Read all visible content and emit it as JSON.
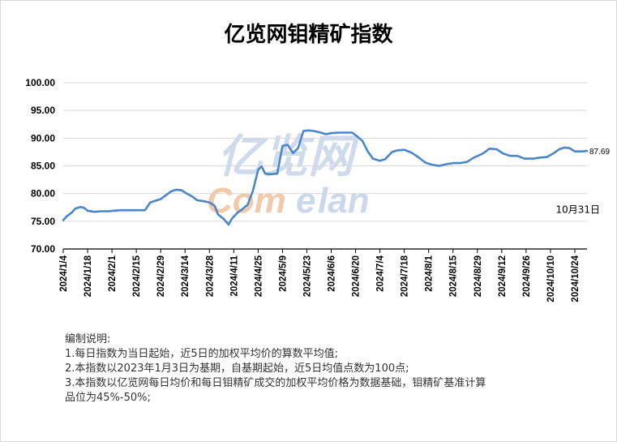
{
  "title": "亿览网钼精矿指数",
  "watermark": {
    "cn": "亿览网",
    "en_left": "Com",
    "en_right": "lan",
    "en_mark": "e"
  },
  "colors": {
    "line": "#4a86c8",
    "watermark_blue": "#a9bfe0",
    "watermark_orange": "#e9a772"
  },
  "chart_data": {
    "type": "line",
    "title": "亿览网钼精矿指数",
    "ylim": [
      70,
      100
    ],
    "yticks": [
      "70.00",
      "75.00",
      "80.00",
      "85.00",
      "90.00",
      "95.00",
      "100.00"
    ],
    "xticks": [
      "2024/1/4",
      "2024/1/18",
      "2024/2/1",
      "2024/2/15",
      "2024/2/29",
      "2024/3/14",
      "2024/3/28",
      "2024/4/11",
      "2024/4/25",
      "2024/5/9",
      "2024/5/23",
      "2024/6/6",
      "2024/6/20",
      "2024/7/4",
      "2024/7/18",
      "2024/8/1",
      "2024/8/15",
      "2024/8/29",
      "2024/9/12",
      "2024/9/26",
      "2024/10/10",
      "2024/10/24"
    ],
    "x_start": "2024/1/4",
    "x_end": "2024/10/31",
    "grid": "horizontal",
    "last_value_label": "87.69",
    "annotation": "10月31日",
    "series": [
      {
        "points": [
          [
            "2024/1/4",
            75.2
          ],
          [
            "2024/1/6",
            75.9
          ],
          [
            "2024/1/9",
            76.6
          ],
          [
            "2024/1/11",
            77.3
          ],
          [
            "2024/1/14",
            77.6
          ],
          [
            "2024/1/16",
            77.4
          ],
          [
            "2024/1/18",
            76.9
          ],
          [
            "2024/1/22",
            76.7
          ],
          [
            "2024/1/26",
            76.8
          ],
          [
            "2024/1/30",
            76.8
          ],
          [
            "2024/2/2",
            76.9
          ],
          [
            "2024/2/6",
            77.0
          ],
          [
            "2024/2/10",
            77.0
          ],
          [
            "2024/2/15",
            77.0
          ],
          [
            "2024/2/20",
            77.0
          ],
          [
            "2024/2/23",
            78.4
          ],
          [
            "2024/2/26",
            78.7
          ],
          [
            "2024/2/29",
            79.0
          ],
          [
            "2024/3/3",
            79.7
          ],
          [
            "2024/3/6",
            80.4
          ],
          [
            "2024/3/9",
            80.7
          ],
          [
            "2024/3/12",
            80.6
          ],
          [
            "2024/3/15",
            80.0
          ],
          [
            "2024/3/18",
            79.5
          ],
          [
            "2024/3/21",
            78.8
          ],
          [
            "2024/3/25",
            78.6
          ],
          [
            "2024/3/28",
            78.4
          ],
          [
            "2024/3/31",
            77.8
          ],
          [
            "2024/4/2",
            76.2
          ],
          [
            "2024/4/5",
            75.5
          ],
          [
            "2024/4/8",
            74.4
          ],
          [
            "2024/4/10",
            75.5
          ],
          [
            "2024/4/13",
            76.5
          ],
          [
            "2024/4/16",
            77.2
          ],
          [
            "2024/4/19",
            78.0
          ],
          [
            "2024/4/22",
            80.5
          ],
          [
            "2024/4/25",
            84.3
          ],
          [
            "2024/4/27",
            84.9
          ],
          [
            "2024/4/29",
            83.6
          ],
          [
            "2024/5/2",
            83.5
          ],
          [
            "2024/5/6",
            83.6
          ],
          [
            "2024/5/9",
            88.6
          ],
          [
            "2024/5/12",
            88.8
          ],
          [
            "2024/5/15",
            87.3
          ],
          [
            "2024/5/18",
            88.2
          ],
          [
            "2024/5/21",
            91.3
          ],
          [
            "2024/5/24",
            91.4
          ],
          [
            "2024/5/27",
            91.3
          ],
          [
            "2024/5/31",
            91.0
          ],
          [
            "2024/6/3",
            90.7
          ],
          [
            "2024/6/6",
            90.9
          ],
          [
            "2024/6/10",
            91.0
          ],
          [
            "2024/6/14",
            91.0
          ],
          [
            "2024/6/18",
            91.0
          ],
          [
            "2024/6/21",
            90.3
          ],
          [
            "2024/6/24",
            89.5
          ],
          [
            "2024/6/27",
            87.6
          ],
          [
            "2024/6/30",
            86.3
          ],
          [
            "2024/7/4",
            85.9
          ],
          [
            "2024/7/7",
            86.2
          ],
          [
            "2024/7/11",
            87.5
          ],
          [
            "2024/7/14",
            87.8
          ],
          [
            "2024/7/18",
            87.9
          ],
          [
            "2024/7/22",
            87.4
          ],
          [
            "2024/7/26",
            86.6
          ],
          [
            "2024/7/30",
            85.6
          ],
          [
            "2024/8/3",
            85.2
          ],
          [
            "2024/8/7",
            85.0
          ],
          [
            "2024/8/11",
            85.3
          ],
          [
            "2024/8/15",
            85.5
          ],
          [
            "2024/8/19",
            85.5
          ],
          [
            "2024/8/23",
            85.7
          ],
          [
            "2024/8/27",
            86.5
          ],
          [
            "2024/9/1",
            87.2
          ],
          [
            "2024/9/5",
            88.1
          ],
          [
            "2024/9/9",
            88.0
          ],
          [
            "2024/9/13",
            87.2
          ],
          [
            "2024/9/17",
            86.8
          ],
          [
            "2024/9/21",
            86.8
          ],
          [
            "2024/9/25",
            86.3
          ],
          [
            "2024/9/30",
            86.3
          ],
          [
            "2024/10/4",
            86.5
          ],
          [
            "2024/10/8",
            86.6
          ],
          [
            "2024/10/12",
            87.3
          ],
          [
            "2024/10/15",
            88.0
          ],
          [
            "2024/10/18",
            88.3
          ],
          [
            "2024/10/21",
            88.2
          ],
          [
            "2024/10/24",
            87.6
          ],
          [
            "2024/10/28",
            87.6
          ],
          [
            "2024/10/31",
            87.69
          ]
        ]
      }
    ]
  },
  "notes": {
    "heading": "编制说明:",
    "lines": [
      "1.每日指数为当日起始，近5日的加权平均价的算数平均值;",
      "2.本指数以2023年1月3日为基期，自基期起始，近5日均值点数为100点;",
      "3.本指数以亿览网每日均价和每日钼精矿成交的加权平均价格为数据基础，钼精矿基准计算",
      "品位为45%-50%;"
    ]
  }
}
